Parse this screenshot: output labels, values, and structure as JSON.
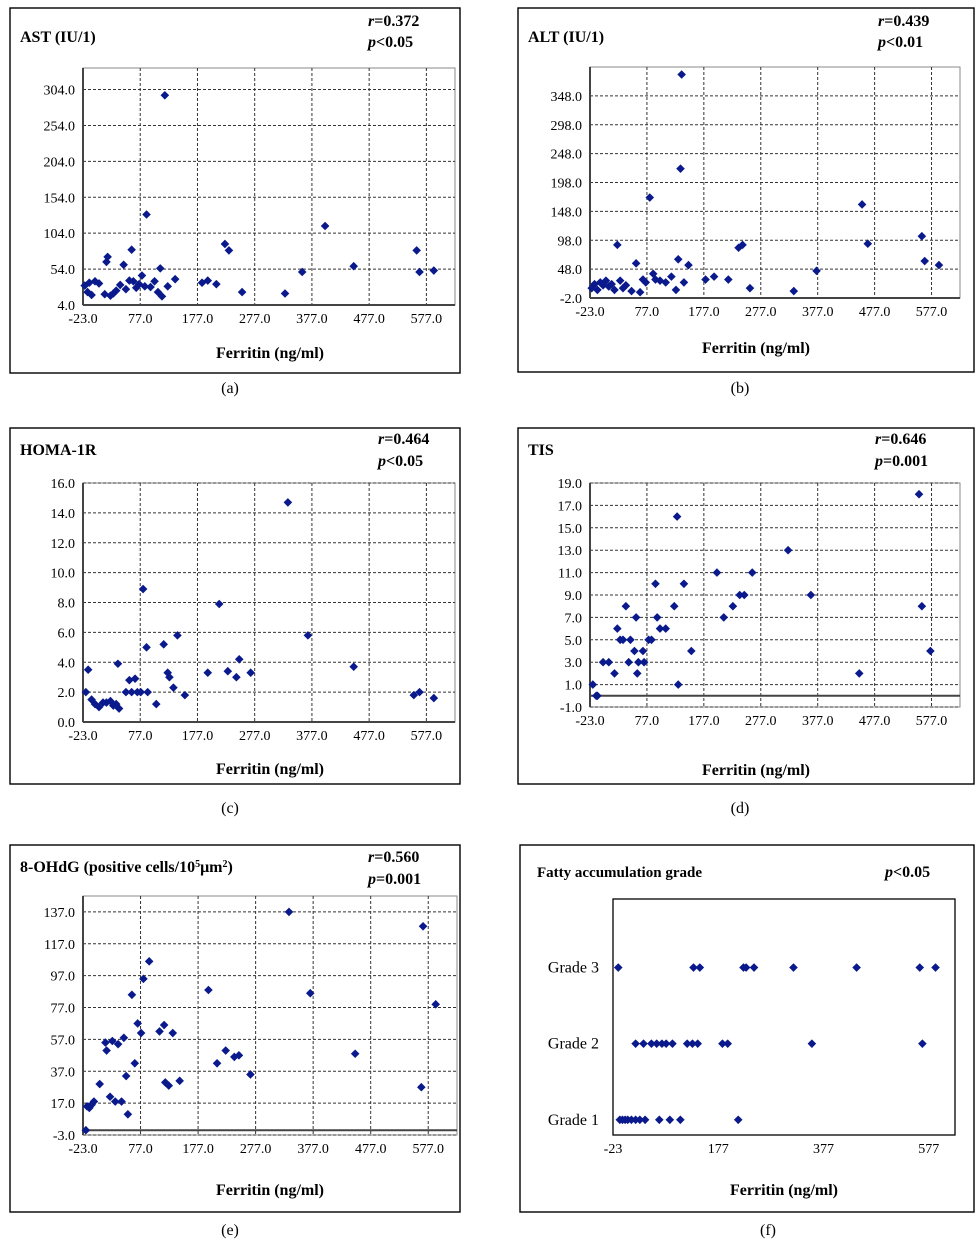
{
  "chart_data": [
    {
      "type": "scatter",
      "label": "(a)",
      "title": "AST (IU/1)",
      "stats": [
        {
          "sym": "r",
          "rest": "=0.372"
        },
        {
          "sym": "p",
          "rest": "<0.05"
        }
      ],
      "xlabel": "Ferritin (ng/ml)",
      "xlim": [
        -23,
        627
      ],
      "ylim": [
        4,
        334
      ],
      "xticks": [
        -23,
        77,
        177,
        277,
        377,
        477,
        577
      ],
      "xtick_labels": [
        "-23.0",
        "77.0",
        "177.0",
        "277.0",
        "377.0",
        "477.0",
        "577.0"
      ],
      "yticks": [
        4,
        54,
        104,
        154,
        204,
        254,
        304
      ],
      "ytick_labels": [
        "4.0",
        "54.0",
        "104.0",
        "154.0",
        "204.0",
        "254.0",
        "304.0"
      ],
      "y_axis_at_x": -23,
      "x_axis_at_y": 4,
      "points": [
        [
          -20,
          31
        ],
        [
          -15,
          22
        ],
        [
          -12,
          35
        ],
        [
          -8,
          18
        ],
        [
          -2,
          37
        ],
        [
          5,
          34
        ],
        [
          15,
          19
        ],
        [
          18,
          64
        ],
        [
          20,
          71
        ],
        [
          25,
          17
        ],
        [
          30,
          20
        ],
        [
          35,
          24
        ],
        [
          42,
          32
        ],
        [
          48,
          60
        ],
        [
          52,
          26
        ],
        [
          58,
          38
        ],
        [
          62,
          81
        ],
        [
          65,
          37
        ],
        [
          70,
          28
        ],
        [
          75,
          33
        ],
        [
          80,
          45
        ],
        [
          85,
          30
        ],
        [
          88,
          130
        ],
        [
          95,
          29
        ],
        [
          102,
          37
        ],
        [
          108,
          22
        ],
        [
          112,
          55
        ],
        [
          115,
          16
        ],
        [
          120,
          296
        ],
        [
          125,
          30
        ],
        [
          138,
          40
        ],
        [
          185,
          35
        ],
        [
          195,
          38
        ],
        [
          210,
          33
        ],
        [
          225,
          89
        ],
        [
          232,
          80
        ],
        [
          255,
          22
        ],
        [
          330,
          20
        ],
        [
          360,
          50
        ],
        [
          400,
          114
        ],
        [
          450,
          58
        ],
        [
          560,
          80
        ],
        [
          565,
          50
        ],
        [
          590,
          52
        ]
      ]
    },
    {
      "type": "scatter",
      "label": "(b)",
      "title": "ALT (IU/1)",
      "stats": [
        {
          "sym": "r",
          "rest": "=0.439"
        },
        {
          "sym": "p",
          "rest": "<0.01"
        }
      ],
      "xlabel": "Ferritin (ng/ml)",
      "xlim": [
        -23,
        627
      ],
      "ylim": [
        -2,
        398
      ],
      "xticks": [
        -23,
        77,
        177,
        277,
        377,
        477,
        577
      ],
      "xtick_labels": [
        "-23.0",
        "77.0",
        "177.0",
        "277.0",
        "377.0",
        "477.0",
        "577.0"
      ],
      "yticks": [
        -2,
        48,
        98,
        148,
        198,
        248,
        298,
        348
      ],
      "ytick_labels": [
        "-2.0",
        "48.0",
        "98.0",
        "148.0",
        "198.0",
        "248.0",
        "298.0",
        "348.0"
      ],
      "y_axis_at_x": -23,
      "x_axis_at_y": -2,
      "points": [
        [
          -20,
          15
        ],
        [
          -15,
          22
        ],
        [
          -10,
          12
        ],
        [
          -5,
          25
        ],
        [
          0,
          20
        ],
        [
          5,
          28
        ],
        [
          10,
          18
        ],
        [
          15,
          22
        ],
        [
          20,
          12
        ],
        [
          25,
          90
        ],
        [
          30,
          28
        ],
        [
          35,
          15
        ],
        [
          40,
          20
        ],
        [
          50,
          10
        ],
        [
          58,
          58
        ],
        [
          65,
          8
        ],
        [
          70,
          30
        ],
        [
          75,
          25
        ],
        [
          82,
          172
        ],
        [
          88,
          40
        ],
        [
          92,
          30
        ],
        [
          100,
          28
        ],
        [
          110,
          25
        ],
        [
          120,
          35
        ],
        [
          128,
          12
        ],
        [
          132,
          65
        ],
        [
          136,
          222
        ],
        [
          138,
          385
        ],
        [
          142,
          25
        ],
        [
          150,
          55
        ],
        [
          180,
          30
        ],
        [
          195,
          35
        ],
        [
          220,
          30
        ],
        [
          238,
          85
        ],
        [
          245,
          90
        ],
        [
          258,
          15
        ],
        [
          335,
          10
        ],
        [
          375,
          45
        ],
        [
          455,
          160
        ],
        [
          465,
          92
        ],
        [
          560,
          105
        ],
        [
          565,
          62
        ],
        [
          590,
          55
        ]
      ]
    },
    {
      "type": "scatter",
      "label": "(c)",
      "title": "HOMA-1R",
      "stats": [
        {
          "sym": "r",
          "rest": "=0.464"
        },
        {
          "sym": "p",
          "rest": "<0.05"
        }
      ],
      "xlabel": "Ferritin (ng/ml)",
      "xlim": [
        -23,
        627
      ],
      "ylim": [
        0,
        16
      ],
      "xticks": [
        -23,
        77,
        177,
        277,
        377,
        477,
        577
      ],
      "xtick_labels": [
        "-23.0",
        "77.0",
        "177.0",
        "277.0",
        "377.0",
        "477.0",
        "577.0"
      ],
      "yticks": [
        0,
        2,
        4,
        6,
        8,
        10,
        12,
        14,
        16
      ],
      "ytick_labels": [
        "0.0",
        "2.0",
        "4.0",
        "6.0",
        "8.0",
        "10.0",
        "12.0",
        "14.0",
        "16.0"
      ],
      "y_axis_at_x": -23,
      "x_axis_at_y": 0,
      "points": [
        [
          -18,
          2
        ],
        [
          -14,
          3.5
        ],
        [
          -8,
          1.5
        ],
        [
          -2,
          1.2
        ],
        [
          5,
          1
        ],
        [
          12,
          1.3
        ],
        [
          18,
          1.3
        ],
        [
          25,
          1.4
        ],
        [
          30,
          1.1
        ],
        [
          35,
          1.2
        ],
        [
          40,
          0.9
        ],
        [
          38,
          3.9
        ],
        [
          52,
          2
        ],
        [
          58,
          2.8
        ],
        [
          62,
          2
        ],
        [
          68,
          2.9
        ],
        [
          72,
          2
        ],
        [
          78,
          2
        ],
        [
          82,
          8.9
        ],
        [
          90,
          2
        ],
        [
          88,
          5
        ],
        [
          105,
          1.2
        ],
        [
          118,
          5.2
        ],
        [
          125,
          3.3
        ],
        [
          128,
          3
        ],
        [
          135,
          2.3
        ],
        [
          142,
          5.8
        ],
        [
          155,
          1.8
        ],
        [
          195,
          3.3
        ],
        [
          215,
          7.9
        ],
        [
          230,
          3.4
        ],
        [
          245,
          3
        ],
        [
          250,
          4.2
        ],
        [
          270,
          3.3
        ],
        [
          335,
          14.7
        ],
        [
          370,
          5.8
        ],
        [
          450,
          3.7
        ],
        [
          555,
          1.8
        ],
        [
          565,
          2
        ],
        [
          590,
          1.6
        ]
      ]
    },
    {
      "type": "scatter",
      "label": "(d)",
      "title": "TIS",
      "stats": [
        {
          "sym": "r",
          "rest": "=0.646"
        },
        {
          "sym": "p",
          "rest": "=0.001"
        }
      ],
      "xlabel": "Ferritin (ng/ml)",
      "xlim": [
        -23,
        627
      ],
      "ylim": [
        -1,
        19
      ],
      "xticks": [
        -23,
        77,
        177,
        277,
        377,
        477,
        577
      ],
      "xtick_labels": [
        "-23.0",
        "77.0",
        "177.0",
        "277.0",
        "377.0",
        "477.0",
        "577.0"
      ],
      "yticks": [
        -1,
        1,
        3,
        5,
        7,
        9,
        11,
        13,
        15,
        17,
        19
      ],
      "ytick_labels": [
        "-1.0",
        "1.0",
        "3.0",
        "5.0",
        "7.0",
        "9.0",
        "11.0",
        "13.0",
        "15.0",
        "17.0",
        "19.0"
      ],
      "y_axis_at_x": -23,
      "x_axis_at_y": 0,
      "points": [
        [
          -18,
          1
        ],
        [
          -12,
          0
        ],
        [
          -10,
          0
        ],
        [
          0,
          3
        ],
        [
          10,
          3
        ],
        [
          20,
          2
        ],
        [
          25,
          6
        ],
        [
          30,
          5
        ],
        [
          35,
          5
        ],
        [
          40,
          8
        ],
        [
          45,
          3
        ],
        [
          48,
          5
        ],
        [
          55,
          4
        ],
        [
          58,
          7
        ],
        [
          60,
          2
        ],
        [
          62,
          3
        ],
        [
          70,
          4
        ],
        [
          72,
          3
        ],
        [
          80,
          5
        ],
        [
          85,
          5
        ],
        [
          92,
          10
        ],
        [
          95,
          7
        ],
        [
          100,
          6
        ],
        [
          110,
          6
        ],
        [
          125,
          8
        ],
        [
          130,
          16
        ],
        [
          132,
          1
        ],
        [
          142,
          10
        ],
        [
          155,
          4
        ],
        [
          200,
          11
        ],
        [
          212,
          7
        ],
        [
          228,
          8
        ],
        [
          240,
          9
        ],
        [
          248,
          9
        ],
        [
          262,
          11
        ],
        [
          325,
          13
        ],
        [
          365,
          9
        ],
        [
          450,
          2
        ],
        [
          555,
          18
        ],
        [
          560,
          8
        ],
        [
          575,
          4
        ]
      ]
    },
    {
      "type": "scatter",
      "label": "(e)",
      "title": "8-OHdG (positive cells/10",
      "title_sup": "5",
      "title_tail": "μm",
      "title_sup2": "2",
      "title_end": ")",
      "stats": [
        {
          "sym": "r",
          "rest": "=0.560"
        },
        {
          "sym": "p",
          "rest": "=0.001"
        }
      ],
      "xlabel": "Ferritin (ng/ml)",
      "xlim": [
        -23,
        627
      ],
      "ylim": [
        -3,
        147
      ],
      "xticks": [
        -23,
        77,
        177,
        277,
        377,
        477,
        577
      ],
      "xtick_labels": [
        "-23.0",
        "77.0",
        "177.0",
        "277.0",
        "377.0",
        "477.0",
        "577.0"
      ],
      "yticks": [
        -3,
        17,
        37,
        57,
        77,
        97,
        117,
        137
      ],
      "ytick_labels": [
        "-3.0",
        "17.0",
        "37.0",
        "57.0",
        "77.0",
        "97.0",
        "117.0",
        "137.0"
      ],
      "y_axis_at_x": -23,
      "x_axis_at_y": 0,
      "points": [
        [
          -18,
          0
        ],
        [
          -16,
          15
        ],
        [
          -12,
          14
        ],
        [
          -8,
          16
        ],
        [
          -4,
          18
        ],
        [
          6,
          29
        ],
        [
          16,
          55
        ],
        [
          18,
          50
        ],
        [
          24,
          21
        ],
        [
          28,
          56
        ],
        [
          33,
          18
        ],
        [
          38,
          54
        ],
        [
          44,
          18
        ],
        [
          48,
          58
        ],
        [
          52,
          34
        ],
        [
          55,
          10
        ],
        [
          62,
          85
        ],
        [
          67,
          42
        ],
        [
          72,
          67
        ],
        [
          78,
          61
        ],
        [
          82,
          95
        ],
        [
          92,
          106
        ],
        [
          110,
          62
        ],
        [
          118,
          66
        ],
        [
          120,
          30
        ],
        [
          126,
          28
        ],
        [
          133,
          61
        ],
        [
          145,
          31
        ],
        [
          195,
          88
        ],
        [
          210,
          42
        ],
        [
          225,
          50
        ],
        [
          240,
          46
        ],
        [
          248,
          47
        ],
        [
          268,
          35
        ],
        [
          335,
          137
        ],
        [
          372,
          86
        ],
        [
          450,
          48
        ],
        [
          565,
          27
        ],
        [
          568,
          128
        ],
        [
          590,
          79
        ]
      ]
    },
    {
      "type": "scatter",
      "label": "(f)",
      "title": "Fatty accumulation grade",
      "stats": [
        {
          "sym": "p",
          "rest": "<0.05"
        }
      ],
      "xlabel": "Ferritin (ng/ml)",
      "xlim": [
        -23,
        627
      ],
      "ylim": [
        0.8,
        3.9
      ],
      "xticks": [
        -23,
        177,
        377,
        577
      ],
      "xtick_labels": [
        "-23",
        "177",
        "377",
        "577"
      ],
      "ycategories": [
        {
          "value": 1,
          "label": "Grade 1"
        },
        {
          "value": 2,
          "label": "Grade 2"
        },
        {
          "value": 3,
          "label": "Grade 3"
        }
      ],
      "points": [
        [
          -13,
          3
        ],
        [
          130,
          3
        ],
        [
          142,
          3
        ],
        [
          225,
          3
        ],
        [
          230,
          3
        ],
        [
          245,
          3
        ],
        [
          320,
          3
        ],
        [
          440,
          3
        ],
        [
          560,
          3
        ],
        [
          590,
          3
        ],
        [
          20,
          2
        ],
        [
          35,
          2
        ],
        [
          50,
          2
        ],
        [
          60,
          2
        ],
        [
          70,
          2
        ],
        [
          78,
          2
        ],
        [
          90,
          2
        ],
        [
          118,
          2
        ],
        [
          128,
          2
        ],
        [
          138,
          2
        ],
        [
          185,
          2
        ],
        [
          195,
          2
        ],
        [
          355,
          2
        ],
        [
          565,
          2
        ],
        [
          -10,
          1
        ],
        [
          -5,
          1
        ],
        [
          0,
          1
        ],
        [
          5,
          1
        ],
        [
          12,
          1
        ],
        [
          20,
          1
        ],
        [
          28,
          1
        ],
        [
          38,
          1
        ],
        [
          65,
          1
        ],
        [
          85,
          1
        ],
        [
          105,
          1
        ],
        [
          215,
          1
        ]
      ]
    }
  ]
}
